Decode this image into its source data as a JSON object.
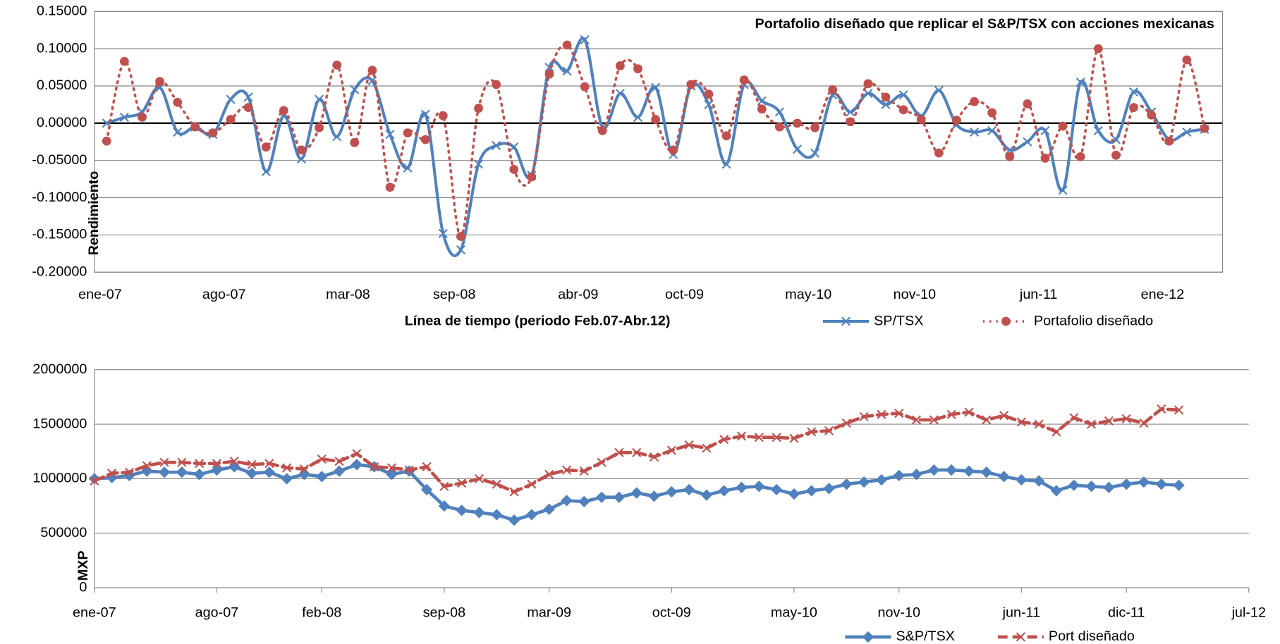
{
  "chart_data": [
    {
      "type": "line",
      "title": "Portafolio diseñado que replicar el S&P/TSX con acciones mexicanas",
      "y_label": "Rendimiento",
      "x_label": "Línea de tiempo (periodo  Feb.07-Abr.12)",
      "categories": [
        "ene-07",
        null,
        null,
        null,
        null,
        null,
        null,
        "ago-07",
        null,
        null,
        null,
        null,
        null,
        null,
        "mar-08",
        null,
        null,
        null,
        null,
        null,
        "sep-08",
        null,
        null,
        null,
        null,
        null,
        null,
        "abr-09",
        null,
        null,
        null,
        null,
        null,
        "oct-09",
        null,
        null,
        null,
        null,
        null,
        null,
        "may-10",
        null,
        null,
        null,
        null,
        null,
        "nov-10",
        null,
        null,
        null,
        null,
        null,
        null,
        "jun-11",
        null,
        null,
        null,
        null,
        null,
        null,
        "ene-12",
        null,
        null
      ],
      "ylim": [
        -0.2,
        0.15
      ],
      "yticks": [
        {
          "value": -0.2,
          "label": "-0.20000"
        },
        {
          "value": -0.15,
          "label": "-0.15000"
        },
        {
          "value": -0.1,
          "label": "-0.10000"
        },
        {
          "value": -0.05,
          "label": "-0.05000"
        },
        {
          "value": 0,
          "label": "0.00000"
        },
        {
          "value": 0.05,
          "label": "0.05000"
        },
        {
          "value": 0.1,
          "label": "0.10000"
        },
        {
          "value": 0.15,
          "label": "0.15000"
        }
      ],
      "negative_tick_color": "#ff0000",
      "grid": true,
      "series": [
        {
          "name": "SP/TSX",
          "color": "#4f81bd",
          "values": [
            0.0,
            0.008,
            0.015,
            0.048,
            -0.012,
            -0.005,
            -0.015,
            0.032,
            0.035,
            -0.065,
            0.01,
            -0.048,
            0.032,
            -0.018,
            0.045,
            0.057,
            -0.015,
            -0.06,
            0.012,
            -0.148,
            -0.17,
            -0.055,
            -0.03,
            -0.032,
            -0.07,
            0.075,
            0.07,
            0.112,
            -0.005,
            0.04,
            0.008,
            0.048,
            -0.042,
            0.05,
            0.025,
            -0.055,
            0.052,
            0.03,
            0.015,
            -0.035,
            -0.04,
            0.038,
            0.015,
            0.04,
            0.025,
            0.038,
            0.01,
            0.044,
            -0.002,
            -0.012,
            -0.01,
            -0.036,
            -0.025,
            -0.01,
            -0.09,
            0.055,
            -0.01,
            -0.022,
            0.042,
            0.015,
            -0.022,
            -0.012,
            -0.008
          ]
        },
        {
          "name": "Portafolio diseñado",
          "color": "#c0504d",
          "values": [
            -0.024,
            0.083,
            0.008,
            0.056,
            0.028,
            -0.005,
            -0.013,
            0.005,
            0.021,
            -0.032,
            0.017,
            -0.036,
            -0.006,
            0.078,
            -0.026,
            0.071,
            -0.086,
            -0.013,
            -0.022,
            0.01,
            -0.152,
            0.02,
            0.052,
            -0.062,
            -0.072,
            0.066,
            0.105,
            0.049,
            -0.01,
            0.077,
            0.073,
            0.005,
            -0.036,
            0.052,
            0.039,
            -0.017,
            0.058,
            0.019,
            -0.005,
            0.0,
            -0.006,
            0.045,
            0.002,
            0.053,
            0.035,
            0.018,
            0.005,
            -0.04,
            0.004,
            0.029,
            0.014,
            -0.045,
            0.026,
            -0.047,
            -0.004,
            -0.045,
            0.1,
            -0.043,
            0.021,
            0.011,
            -0.024,
            0.085,
            -0.007
          ]
        }
      ]
    },
    {
      "type": "line",
      "y_label": "MXP",
      "categories": [
        "ene-07",
        null,
        null,
        null,
        null,
        null,
        null,
        "ago-07",
        null,
        null,
        null,
        null,
        null,
        "feb-08",
        null,
        null,
        null,
        null,
        null,
        null,
        "sep-08",
        null,
        null,
        null,
        null,
        null,
        "mar-09",
        null,
        null,
        null,
        null,
        null,
        null,
        "oct-09",
        null,
        null,
        null,
        null,
        null,
        null,
        "may-10",
        null,
        null,
        null,
        null,
        null,
        "nov-10",
        null,
        null,
        null,
        null,
        null,
        null,
        "jun-11",
        null,
        null,
        null,
        null,
        null,
        "dic-11",
        null,
        null,
        null,
        null,
        null,
        null,
        "jul-12"
      ],
      "ylim": [
        0,
        2000000
      ],
      "yticks": [
        0,
        500000,
        1000000,
        1500000,
        2000000
      ],
      "grid": true,
      "series": [
        {
          "name": "S&P/TSX",
          "color": "#4f81bd",
          "values": [
            1000000,
            1010000,
            1030000,
            1070000,
            1060000,
            1060000,
            1040000,
            1080000,
            1110000,
            1050000,
            1060000,
            1000000,
            1040000,
            1020000,
            1070000,
            1130000,
            1110000,
            1040000,
            1070000,
            900000,
            750000,
            710000,
            690000,
            670000,
            620000,
            670000,
            720000,
            800000,
            790000,
            830000,
            830000,
            870000,
            840000,
            880000,
            900000,
            850000,
            890000,
            920000,
            930000,
            900000,
            860000,
            890000,
            910000,
            950000,
            970000,
            990000,
            1030000,
            1040000,
            1080000,
            1080000,
            1070000,
            1060000,
            1020000,
            990000,
            980000,
            890000,
            940000,
            930000,
            920000,
            950000,
            970000,
            950000,
            940000,
            null,
            null,
            null,
            null
          ]
        },
        {
          "name": "Port diseñado",
          "color": "#c0504d",
          "values": [
            980000,
            1050000,
            1060000,
            1120000,
            1150000,
            1150000,
            1140000,
            1140000,
            1160000,
            1130000,
            1140000,
            1100000,
            1090000,
            1180000,
            1160000,
            1230000,
            1110000,
            1100000,
            1080000,
            1110000,
            930000,
            960000,
            1000000,
            950000,
            880000,
            950000,
            1040000,
            1080000,
            1070000,
            1150000,
            1240000,
            1240000,
            1200000,
            1260000,
            1310000,
            1280000,
            1360000,
            1390000,
            1380000,
            1380000,
            1370000,
            1430000,
            1440000,
            1510000,
            1570000,
            1590000,
            1600000,
            1540000,
            1540000,
            1590000,
            1610000,
            1540000,
            1580000,
            1520000,
            1500000,
            1430000,
            1560000,
            1500000,
            1530000,
            1550000,
            1510000,
            1640000,
            1630000,
            null,
            null,
            null,
            null
          ]
        }
      ]
    }
  ]
}
